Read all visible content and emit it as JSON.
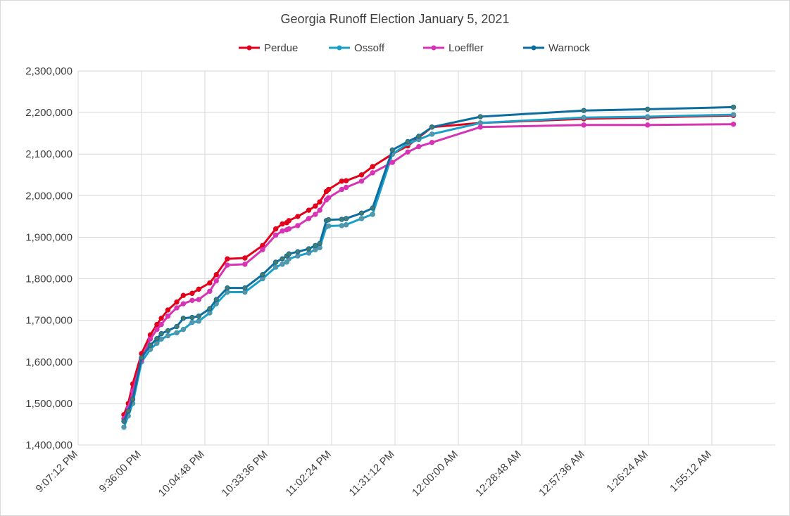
{
  "chart_data": {
    "type": "line",
    "title": "Georgia Runoff Election January 5, 2021",
    "xlabel": "",
    "ylabel": "",
    "ylim": [
      1400000,
      2300000
    ],
    "yticks": [
      1400000,
      1500000,
      1600000,
      1700000,
      1800000,
      1900000,
      2000000,
      2100000,
      2200000,
      2300000
    ],
    "ytick_labels": [
      "1,400,000",
      "1,500,000",
      "1,600,000",
      "1,700,000",
      "1,800,000",
      "1,900,000",
      "2,000,000",
      "2,100,000",
      "2,200,000",
      "2,300,000"
    ],
    "xlim": [
      "21:07:12",
      "02:24:00"
    ],
    "xticks": [
      "21:07:12",
      "21:36:00",
      "22:04:48",
      "22:33:36",
      "23:02:24",
      "23:31:12",
      "00:00:00",
      "00:28:48",
      "00:57:36",
      "01:26:24",
      "01:55:12"
    ],
    "xtick_labels": [
      "9:07:12 PM",
      "9:36:00 PM",
      "10:04:48 PM",
      "10:33:36 PM",
      "11:02:24 PM",
      "11:31:12 PM",
      "12:00:00 AM",
      "12:28:48 AM",
      "12:57:36 AM",
      "1:26:24 AM",
      "1:55:12 AM"
    ],
    "grid": true,
    "legend_position": "top",
    "series": [
      {
        "name": "Perdue",
        "color": "#e3001b",
        "x": [
          "21:28:00",
          "21:30:00",
          "21:32:00",
          "21:36:00",
          "21:40:00",
          "21:43:00",
          "21:45:00",
          "21:48:00",
          "21:52:00",
          "21:55:00",
          "21:59:00",
          "22:02:00",
          "22:07:00",
          "22:10:00",
          "22:15:00",
          "22:23:00",
          "22:31:00",
          "22:37:00",
          "22:40:00",
          "22:42:00",
          "22:43:00",
          "22:47:00",
          "22:52:00",
          "22:55:00",
          "22:57:00",
          "23:00:00",
          "23:01:00",
          "23:07:00",
          "23:09:00",
          "23:16:00",
          "23:21:00",
          "23:30:00",
          "23:37:00",
          "23:42:00",
          "23:48:00",
          "00:10:00",
          "00:57:00",
          "01:26:00",
          "02:05:00"
        ],
        "y": [
          1473000,
          1500000,
          1547000,
          1620000,
          1665000,
          1690000,
          1705000,
          1725000,
          1744000,
          1760000,
          1765000,
          1775000,
          1790000,
          1810000,
          1848000,
          1850000,
          1880000,
          1920000,
          1932000,
          1935000,
          1940000,
          1950000,
          1965000,
          1975000,
          1985000,
          2010000,
          2015000,
          2035000,
          2036000,
          2050000,
          2070000,
          2100000,
          2120000,
          2140000,
          2165000,
          2175000,
          2185000,
          2188000,
          2193000
        ]
      },
      {
        "name": "Ossoff",
        "color": "#1aa0c8",
        "x": [
          "21:28:00",
          "21:30:00",
          "21:32:00",
          "21:36:00",
          "21:40:00",
          "21:43:00",
          "21:45:00",
          "21:48:00",
          "21:52:00",
          "21:55:00",
          "21:59:00",
          "22:02:00",
          "22:07:00",
          "22:10:00",
          "22:15:00",
          "22:23:00",
          "22:31:00",
          "22:37:00",
          "22:40:00",
          "22:42:00",
          "22:43:00",
          "22:47:00",
          "22:52:00",
          "22:55:00",
          "22:57:00",
          "23:00:00",
          "23:01:00",
          "23:07:00",
          "23:09:00",
          "23:16:00",
          "23:21:00",
          "23:30:00",
          "23:37:00",
          "23:42:00",
          "23:48:00",
          "00:10:00",
          "00:57:00",
          "01:26:00",
          "02:05:00"
        ],
        "y": [
          1443000,
          1470000,
          1500000,
          1600000,
          1630000,
          1645000,
          1655000,
          1663000,
          1670000,
          1678000,
          1695000,
          1698000,
          1718000,
          1740000,
          1768000,
          1768000,
          1800000,
          1828000,
          1835000,
          1840000,
          1848000,
          1855000,
          1862000,
          1870000,
          1875000,
          1925000,
          1927000,
          1928000,
          1930000,
          1945000,
          1955000,
          2100000,
          2125000,
          2135000,
          2148000,
          2175000,
          2188000,
          2190000,
          2195000
        ]
      },
      {
        "name": "Loeffler",
        "color": "#d633b5",
        "x": [
          "21:28:00",
          "21:30:00",
          "21:32:00",
          "21:36:00",
          "21:40:00",
          "21:43:00",
          "21:45:00",
          "21:48:00",
          "21:52:00",
          "21:55:00",
          "21:59:00",
          "22:02:00",
          "22:07:00",
          "22:10:00",
          "22:15:00",
          "22:23:00",
          "22:31:00",
          "22:37:00",
          "22:40:00",
          "22:42:00",
          "22:43:00",
          "22:47:00",
          "22:52:00",
          "22:55:00",
          "22:57:00",
          "23:00:00",
          "23:01:00",
          "23:07:00",
          "23:09:00",
          "23:16:00",
          "23:21:00",
          "23:30:00",
          "23:37:00",
          "23:42:00",
          "23:48:00",
          "00:10:00",
          "00:57:00",
          "01:26:00",
          "02:05:00"
        ],
        "y": [
          1463000,
          1490000,
          1530000,
          1605000,
          1655000,
          1678000,
          1690000,
          1710000,
          1730000,
          1740000,
          1748000,
          1750000,
          1770000,
          1795000,
          1833000,
          1835000,
          1870000,
          1905000,
          1915000,
          1918000,
          1920000,
          1928000,
          1945000,
          1955000,
          1965000,
          1990000,
          1995000,
          2015000,
          2020000,
          2035000,
          2055000,
          2080000,
          2105000,
          2118000,
          2128000,
          2165000,
          2170000,
          2170000,
          2172000
        ]
      },
      {
        "name": "Warnock",
        "color": "#0c6d9e",
        "x": [
          "21:28:00",
          "21:30:00",
          "21:32:00",
          "21:36:00",
          "21:40:00",
          "21:43:00",
          "21:45:00",
          "21:48:00",
          "21:52:00",
          "21:55:00",
          "21:59:00",
          "22:02:00",
          "22:07:00",
          "22:10:00",
          "22:15:00",
          "22:23:00",
          "22:31:00",
          "22:37:00",
          "22:40:00",
          "22:42:00",
          "22:43:00",
          "22:47:00",
          "22:52:00",
          "22:55:00",
          "22:57:00",
          "23:00:00",
          "23:01:00",
          "23:07:00",
          "23:09:00",
          "23:16:00",
          "23:21:00",
          "23:30:00",
          "23:37:00",
          "23:42:00",
          "23:48:00",
          "00:10:00",
          "00:57:00",
          "01:26:00",
          "02:05:00"
        ],
        "y": [
          1457000,
          1482000,
          1510000,
          1610000,
          1640000,
          1656000,
          1668000,
          1675000,
          1685000,
          1705000,
          1707000,
          1710000,
          1728000,
          1750000,
          1778000,
          1778000,
          1810000,
          1840000,
          1848000,
          1855000,
          1860000,
          1865000,
          1872000,
          1880000,
          1885000,
          1940000,
          1942000,
          1943000,
          1945000,
          1958000,
          1970000,
          2110000,
          2130000,
          2143000,
          2165000,
          2190000,
          2205000,
          2208000,
          2213000
        ]
      }
    ]
  }
}
